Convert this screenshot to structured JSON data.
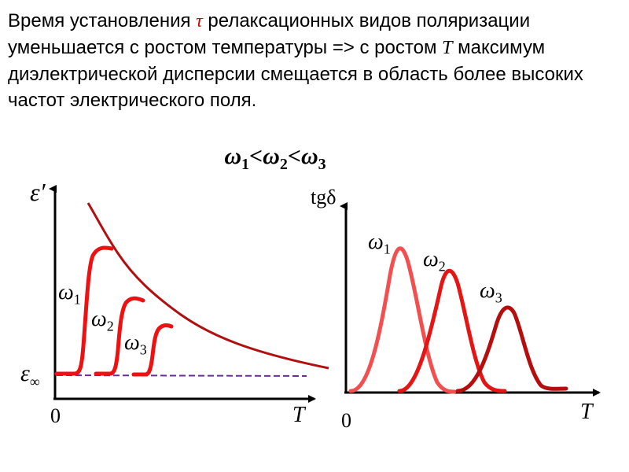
{
  "header": {
    "line1_a": "Время установления ",
    "tau": "τ",
    "line1_b": " релаксационных видов поляризации уменьшается с ростом температуры =>  с ростом ",
    "T": "T",
    "line1_c": " максимум диэлектрической дисперсии смещается в область более высоких частот электрического поля."
  },
  "relation": {
    "w": "ω",
    "s1": "1",
    "lt": "<",
    "s2": "2",
    "s3": "3"
  },
  "left_plot": {
    "y_label": "ε′",
    "eps_inf_label": "ε",
    "eps_inf_sub": "∞",
    "x_label": "T",
    "origin": "0",
    "curves": [
      {
        "name": "ω",
        "sub": "1",
        "color": "#ee1111"
      },
      {
        "name": "ω",
        "sub": "2",
        "color": "#ee1111"
      },
      {
        "name": "ω",
        "sub": "3",
        "color": "#ee1111"
      }
    ],
    "envelope_color": "#b01010",
    "baseline_color": "#6a2d9a"
  },
  "right_plot": {
    "y_label": "tgδ",
    "x_label": "T",
    "origin": "0",
    "curves": [
      {
        "name": "ω",
        "sub": "1",
        "color": "#f25050"
      },
      {
        "name": "ω",
        "sub": "2",
        "color": "#e41515"
      },
      {
        "name": "ω",
        "sub": "3",
        "color": "#b40e0e"
      }
    ]
  }
}
